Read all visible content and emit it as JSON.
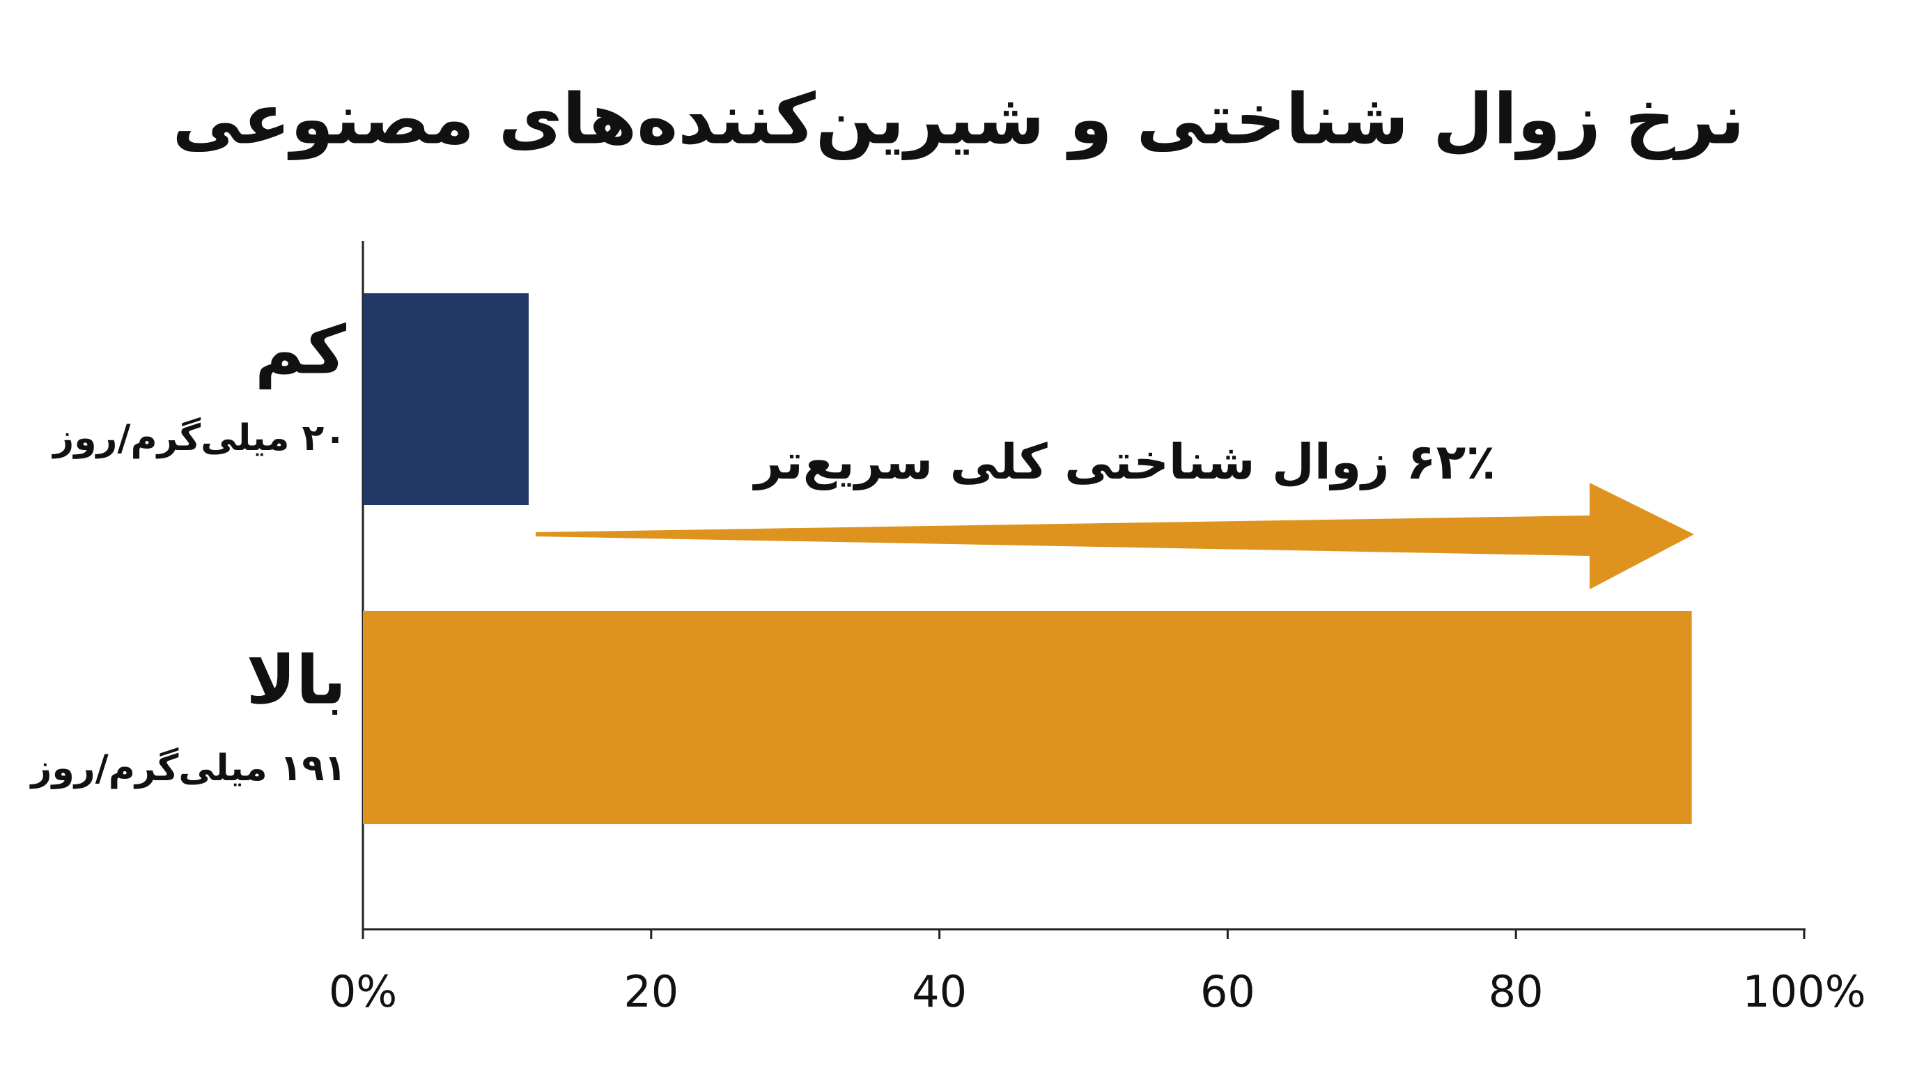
{
  "chart_data": {
    "type": "hbar",
    "title": "نرخ زوال شناختی و شیرین‌کننده‌های مصنوعی",
    "categories": [
      "کم",
      "بالا"
    ],
    "category_sublabels": [
      "۲۰ میلی‌گرم/روز",
      "۱۹۱ میلی‌گرم/روز"
    ],
    "values": [
      11.5,
      92.2
    ],
    "colors": [
      "#223866",
      "#de931e"
    ],
    "xlim": [
      0,
      100
    ],
    "xticks": [
      {
        "value": 0,
        "label": "0%"
      },
      20,
      40,
      60,
      80,
      {
        "value": 100,
        "label": "100%"
      }
    ],
    "annotation": "۶۲٪ زوال شناختی کلی سریع‌تر",
    "annotation_color": "#de931e",
    "grid": false
  }
}
